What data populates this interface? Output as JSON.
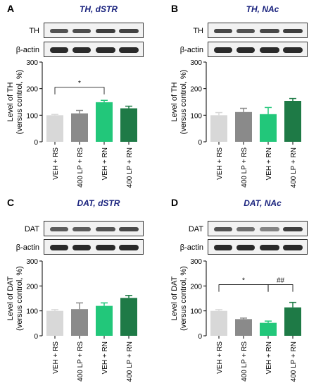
{
  "chart_data": [
    {
      "panel": "A",
      "type": "bar",
      "title": "TH, dSTR",
      "ylabel": [
        "Level of TH",
        "(versus control, %)"
      ],
      "ylim": [
        0,
        300
      ],
      "yticks": [
        0,
        100,
        200,
        300
      ],
      "categories": [
        "VEH + RS",
        "400 LP + RS",
        "VEH + RN",
        "400 LP + RN"
      ],
      "values": [
        100,
        107,
        149,
        126
      ],
      "errors": [
        3,
        11,
        7,
        8
      ],
      "colors": [
        "#d8d8d8",
        "#8a8a8a",
        "#22c77a",
        "#1e7a46"
      ],
      "blots": [
        "TH",
        "β-actin"
      ],
      "annotations": [
        {
          "text": "*",
          "from": 0,
          "to": 2,
          "y": 205
        }
      ]
    },
    {
      "panel": "B",
      "type": "bar",
      "title": "TH, NAc",
      "ylabel": [
        "Level of TH",
        "(versus control, %)"
      ],
      "ylim": [
        0,
        300
      ],
      "yticks": [
        0,
        100,
        200,
        300
      ],
      "categories": [
        "VEH + RS",
        "400 LP + RS",
        "VEH + RN",
        "400 LP + RN"
      ],
      "values": [
        100,
        112,
        104,
        154
      ],
      "errors": [
        10,
        14,
        25,
        9
      ],
      "colors": [
        "#d8d8d8",
        "#8a8a8a",
        "#22c77a",
        "#1e7a46"
      ],
      "blots": [
        "TH",
        "β-actin"
      ],
      "annotations": []
    },
    {
      "panel": "C",
      "type": "bar",
      "title": "DAT, dSTR",
      "ylabel": [
        "Level of DAT",
        "(versus control, %)"
      ],
      "ylim": [
        0,
        300
      ],
      "yticks": [
        0,
        100,
        200,
        300
      ],
      "categories": [
        "VEH + RS",
        "400 LP + RS",
        "VEH + RN",
        "400 LP + RN"
      ],
      "values": [
        100,
        107,
        120,
        152
      ],
      "errors": [
        5,
        25,
        12,
        10
      ],
      "colors": [
        "#d8d8d8",
        "#8a8a8a",
        "#22c77a",
        "#1e7a46"
      ],
      "blots": [
        "DAT",
        "β-actin"
      ],
      "annotations": []
    },
    {
      "panel": "D",
      "type": "bar",
      "title": "DAT, NAc",
      "ylabel": [
        "Level of DAT",
        "(versus control, %)"
      ],
      "ylim": [
        0,
        300
      ],
      "yticks": [
        0,
        100,
        200,
        300
      ],
      "categories": [
        "VEH + RS",
        "400 LP + RS",
        "VEH + RN",
        "400 LP + RN"
      ],
      "values": [
        100,
        67,
        52,
        114
      ],
      "errors": [
        5,
        4,
        7,
        20
      ],
      "colors": [
        "#d8d8d8",
        "#8a8a8a",
        "#22c77a",
        "#1e7a46"
      ],
      "blots": [
        "DAT",
        "β-actin"
      ],
      "annotations": [
        {
          "text": "*",
          "from": 0,
          "to": 2,
          "y": 205
        },
        {
          "text": "##",
          "from": 2,
          "to": 3,
          "y": 205
        }
      ]
    }
  ]
}
